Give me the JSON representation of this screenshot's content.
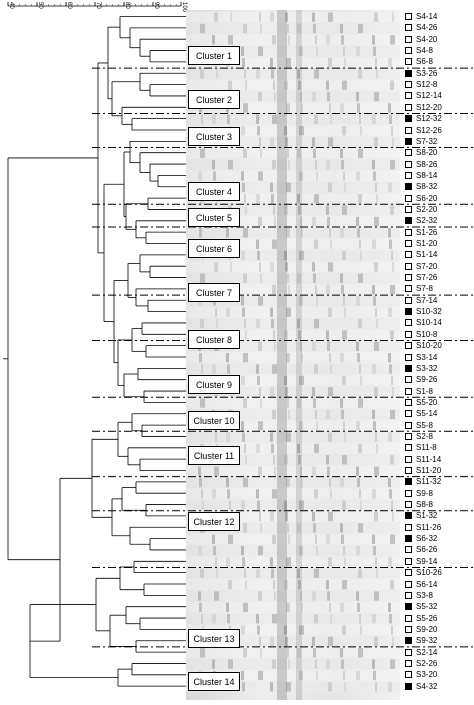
{
  "scale": {
    "ticks": [
      "40",
      "50",
      "60",
      "70",
      "80",
      "90",
      "100"
    ]
  },
  "samples": [
    {
      "label": "S4-14",
      "filled": false
    },
    {
      "label": "S4-26",
      "filled": false
    },
    {
      "label": "S4-20",
      "filled": false
    },
    {
      "label": "S4-8",
      "filled": false
    },
    {
      "label": "S6-8",
      "filled": false
    },
    {
      "label": "S3-26",
      "filled": true
    },
    {
      "label": "S12-8",
      "filled": false
    },
    {
      "label": "S12-14",
      "filled": false
    },
    {
      "label": "S12-20",
      "filled": false
    },
    {
      "label": "S12-32",
      "filled": true
    },
    {
      "label": "S12-26",
      "filled": false
    },
    {
      "label": "S7-32",
      "filled": true
    },
    {
      "label": "S8-20",
      "filled": false
    },
    {
      "label": "S8-26",
      "filled": false
    },
    {
      "label": "S8-14",
      "filled": false
    },
    {
      "label": "S8-32",
      "filled": true
    },
    {
      "label": "S6-20",
      "filled": false
    },
    {
      "label": "S2-20",
      "filled": false
    },
    {
      "label": "S2-32",
      "filled": true
    },
    {
      "label": "S1-26",
      "filled": false
    },
    {
      "label": "S1-20",
      "filled": false
    },
    {
      "label": "S1-14",
      "filled": false
    },
    {
      "label": "S7-20",
      "filled": false
    },
    {
      "label": "S7-26",
      "filled": false
    },
    {
      "label": "S7-8",
      "filled": false
    },
    {
      "label": "S7-14",
      "filled": false
    },
    {
      "label": "S10-32",
      "filled": true
    },
    {
      "label": "S10-14",
      "filled": false
    },
    {
      "label": "S10-8",
      "filled": false
    },
    {
      "label": "S10-20",
      "filled": false
    },
    {
      "label": "S3-14",
      "filled": false
    },
    {
      "label": "S3-32",
      "filled": true
    },
    {
      "label": "S9-26",
      "filled": false
    },
    {
      "label": "S1-8",
      "filled": false
    },
    {
      "label": "S5-20",
      "filled": false
    },
    {
      "label": "S5-14",
      "filled": false
    },
    {
      "label": "S5-8",
      "filled": false
    },
    {
      "label": "S2-8",
      "filled": false
    },
    {
      "label": "S11-8",
      "filled": false
    },
    {
      "label": "S11-14",
      "filled": false
    },
    {
      "label": "S11-20",
      "filled": false
    },
    {
      "label": "S11-32",
      "filled": true
    },
    {
      "label": "S9-8",
      "filled": false
    },
    {
      "label": "S8-8",
      "filled": false
    },
    {
      "label": "S1-32",
      "filled": true
    },
    {
      "label": "S11-26",
      "filled": false
    },
    {
      "label": "S6-32",
      "filled": true
    },
    {
      "label": "S6-26",
      "filled": false
    },
    {
      "label": "S9-14",
      "filled": false
    },
    {
      "label": "S10-26",
      "filled": false
    },
    {
      "label": "S6-14",
      "filled": false
    },
    {
      "label": "S3-8",
      "filled": false
    },
    {
      "label": "S5-32",
      "filled": true
    },
    {
      "label": "S5-26",
      "filled": false
    },
    {
      "label": "S9-20",
      "filled": false
    },
    {
      "label": "S9-32",
      "filled": true
    },
    {
      "label": "S2-14",
      "filled": false
    },
    {
      "label": "S2-26",
      "filled": false
    },
    {
      "label": "S3-20",
      "filled": false
    },
    {
      "label": "S4-32",
      "filled": true
    }
  ],
  "clusters": [
    {
      "label": "Cluster 1"
    },
    {
      "label": "Cluster 2"
    },
    {
      "label": "Cluster 3"
    },
    {
      "label": "Cluster 4"
    },
    {
      "label": "Cluster 5"
    },
    {
      "label": "Cluster 6"
    },
    {
      "label": "Cluster 7"
    },
    {
      "label": "Cluster 8"
    },
    {
      "label": "Cluster 9"
    },
    {
      "label": "Cluster 10"
    },
    {
      "label": "Cluster 11"
    },
    {
      "label": "Cluster 12"
    },
    {
      "label": "Cluster 13"
    },
    {
      "label": "Cluster 14"
    }
  ]
}
